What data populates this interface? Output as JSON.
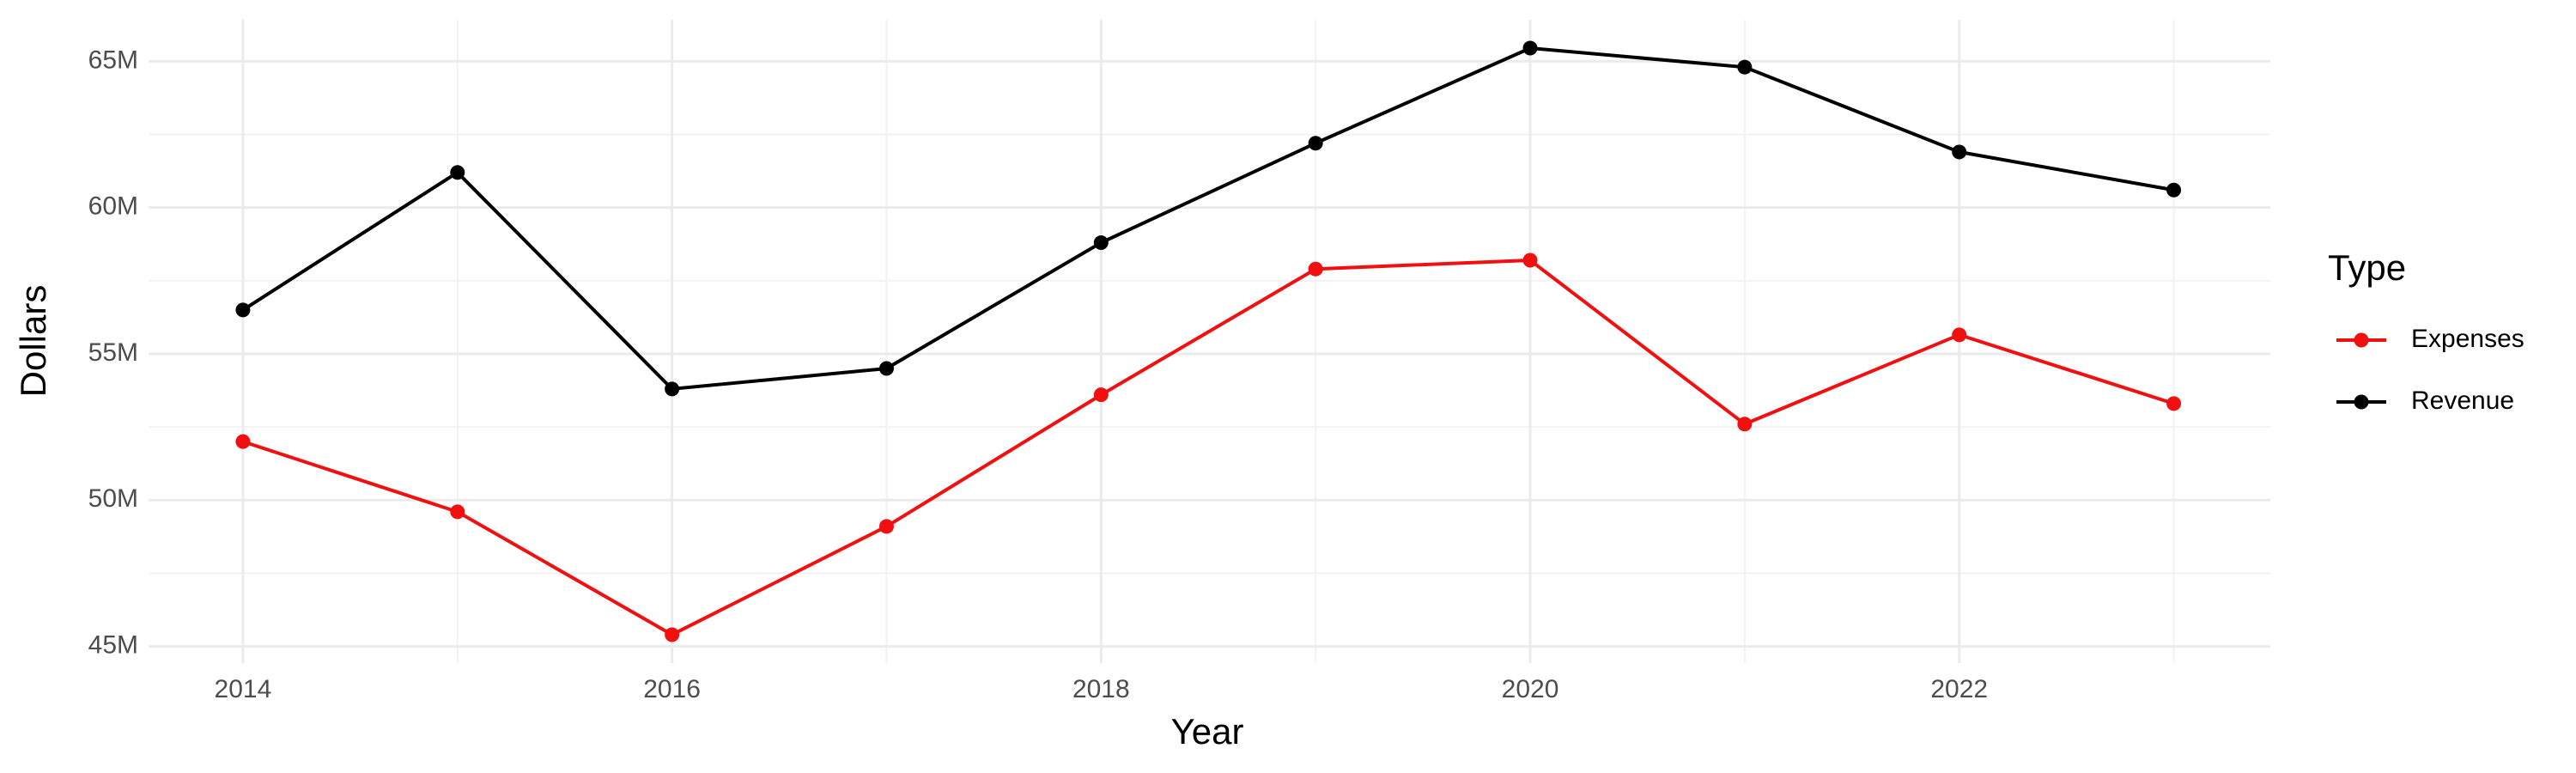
{
  "chart_data": {
    "type": "line",
    "x_label": "Year",
    "y_label": "Dollars",
    "legend_title": "Type",
    "x": [
      2014,
      2015,
      2016,
      2017,
      2018,
      2019,
      2020,
      2021,
      2022,
      2023
    ],
    "series": [
      {
        "name": "Expenses",
        "color": "#f20f0f",
        "values": [
          52000000,
          49600000,
          45400000,
          49100000,
          53600000,
          57900000,
          58200000,
          52600000,
          55650000,
          53300000
        ]
      },
      {
        "name": "Revenue",
        "color": "#000000",
        "values": [
          56500000,
          61200000,
          53800000,
          54500000,
          58800000,
          62200000,
          65450000,
          64800000,
          61900000,
          60600000
        ]
      }
    ],
    "xlim": [
      2013.56,
      2023.45
    ],
    "xticks": [
      2014,
      2016,
      2018,
      2020,
      2022
    ],
    "ylim": [
      44430000,
      66420000
    ],
    "yticks": [
      {
        "value": 45000000,
        "label": "45M"
      },
      {
        "value": 50000000,
        "label": "50M"
      },
      {
        "value": 55000000,
        "label": "55M"
      },
      {
        "value": 60000000,
        "label": "60M"
      },
      {
        "value": 65000000,
        "label": "65M"
      }
    ],
    "grid": true,
    "legend_position": "right"
  }
}
